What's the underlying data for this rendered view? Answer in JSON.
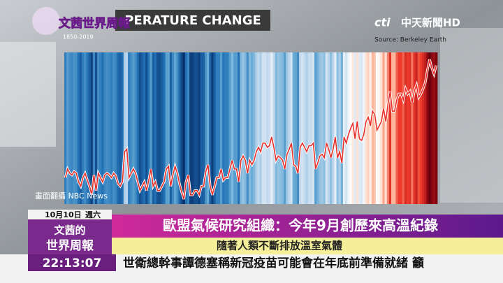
{
  "chart_data": {
    "type": "line",
    "title": "PERATURE CHANGE",
    "subtitle": "1850-2019",
    "color": "#e8302a",
    "values": [
      -0.35,
      -0.25,
      -0.3,
      -0.32,
      -0.28,
      -0.3,
      -0.4,
      -0.45,
      -0.35,
      -0.3,
      -0.38,
      -0.45,
      -0.55,
      -0.32,
      -0.5,
      -0.3,
      -0.35,
      -0.4,
      -0.32,
      -0.3,
      -0.32,
      -0.35,
      -0.3,
      -0.33,
      -0.42,
      -0.45,
      -0.4,
      -0.05,
      -0.02,
      -0.35,
      -0.3,
      -0.25,
      -0.3,
      -0.4,
      -0.5,
      -0.45,
      -0.4,
      -0.5,
      -0.38,
      -0.25,
      -0.45,
      -0.4,
      -0.5,
      -0.5,
      -0.45,
      -0.4,
      -0.25,
      -0.22,
      -0.45,
      -0.32,
      -0.22,
      -0.3,
      -0.42,
      -0.52,
      -0.6,
      -0.4,
      -0.32,
      -0.55,
      -0.55,
      -0.5,
      -0.5,
      -0.55,
      -0.45,
      -0.45,
      -0.28,
      -0.2,
      -0.45,
      -0.55,
      -0.45,
      -0.35,
      -0.35,
      -0.25,
      -0.38,
      -0.35,
      -0.35,
      -0.25,
      -0.15,
      -0.25,
      -0.25,
      -0.4,
      -0.15,
      -0.1,
      -0.15,
      -0.3,
      -0.15,
      -0.2,
      -0.15,
      -0.05,
      0.0,
      -0.05,
      0.05,
      0.05,
      0.0,
      0.02,
      0.12,
      0.0,
      -0.15,
      -0.1,
      -0.12,
      -0.15,
      -0.25,
      -0.08,
      -0.02,
      0.05,
      -0.2,
      -0.22,
      -0.3,
      0.0,
      0.05,
      0.0,
      -0.05,
      0.02,
      0.02,
      0.05,
      -0.25,
      -0.18,
      -0.1,
      -0.08,
      -0.12,
      0.05,
      -0.02,
      -0.12,
      -0.02,
      0.12,
      -0.12,
      -0.05,
      -0.18,
      0.12,
      0.05,
      0.15,
      0.22,
      0.28,
      0.1,
      0.3,
      0.1,
      0.08,
      0.15,
      0.3,
      0.35,
      0.25,
      0.42,
      0.38,
      0.2,
      0.25,
      0.3,
      0.45,
      0.3,
      0.5,
      0.65,
      0.42,
      0.42,
      0.55,
      0.62,
      0.62,
      0.55,
      0.68,
      0.62,
      0.65,
      0.52,
      0.65,
      0.72,
      0.58,
      0.62,
      0.68,
      0.75,
      0.9,
      1.02,
      0.92,
      0.85,
      0.95
    ]
  },
  "overlay": {
    "show_logo": "文茜世界周報",
    "channel_logo": "cti",
    "channel": "中天新聞HD",
    "source": "Source: Berkeley Earth",
    "credit": "畫面翻攝 NBC News"
  },
  "lower_third": {
    "date": "10月10日",
    "weekday": "週六",
    "program": [
      "文茜的",
      "世界周報"
    ],
    "headline": "歐盟氣候研究組織：今年9月創歷來高溫紀錄",
    "subheadline": "隨著人類不斷排放溫室氣體",
    "clock": "22:13:07",
    "ticker": "世衛總幹事譚德塞稱新冠疫苗可能會在年底前準備就緒 籲"
  }
}
